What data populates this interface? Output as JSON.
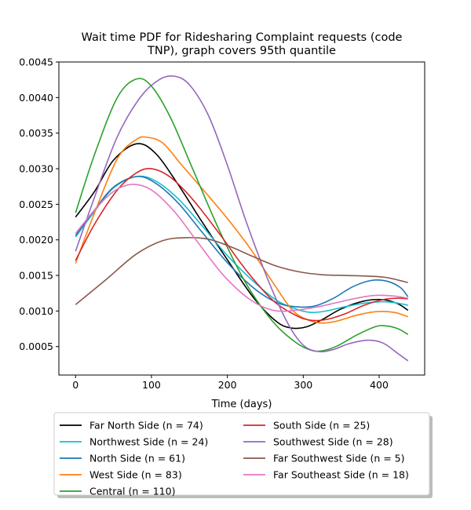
{
  "chart_data": {
    "type": "line",
    "title_lines": [
      "Wait time PDF for Ridesharing Complaint  requests (code",
      "TNP), graph covers 95th quantile"
    ],
    "xlabel": "Time (days)",
    "ylabel": "",
    "xlim": [
      -22,
      460
    ],
    "ylim": [
      0.0001,
      0.0045
    ],
    "x_ticks": [
      0,
      100,
      200,
      300,
      400
    ],
    "y_ticks": [
      0.0005,
      0.001,
      0.0015,
      0.002,
      0.0025,
      0.003,
      0.0035,
      0.004,
      0.0045
    ],
    "y_tick_labels": [
      "0.0005",
      "0.0010",
      "0.0015",
      "0.0020",
      "0.0025",
      "0.0030",
      "0.0035",
      "0.0040",
      "0.0045"
    ],
    "grid": false,
    "legend_placement": "below-plot",
    "legend_columns": 2,
    "series": [
      {
        "name": "Far North Side (n = 74)",
        "color": "#000000",
        "points": [
          [
            0,
            0.00232
          ],
          [
            25,
            0.00268
          ],
          [
            50,
            0.00312
          ],
          [
            80,
            0.00335
          ],
          [
            105,
            0.00322
          ],
          [
            135,
            0.00278
          ],
          [
            165,
            0.00228
          ],
          [
            200,
            0.00172
          ],
          [
            235,
            0.00118
          ],
          [
            265,
            0.00085
          ],
          [
            285,
            0.00076
          ],
          [
            305,
            0.00078
          ],
          [
            325,
            0.00088
          ],
          [
            350,
            0.00103
          ],
          [
            380,
            0.00114
          ],
          [
            405,
            0.00116
          ],
          [
            425,
            0.0011
          ],
          [
            438,
            0.00101
          ]
        ]
      },
      {
        "name": "Northwest Side (n = 24)",
        "color": "#17becf",
        "points": [
          [
            0,
            0.00204
          ],
          [
            25,
            0.0024
          ],
          [
            50,
            0.00273
          ],
          [
            80,
            0.00289
          ],
          [
            105,
            0.00283
          ],
          [
            135,
            0.00258
          ],
          [
            165,
            0.00222
          ],
          [
            200,
            0.00178
          ],
          [
            235,
            0.00141
          ],
          [
            265,
            0.00115
          ],
          [
            290,
            0.00103
          ],
          [
            310,
            0.00098
          ],
          [
            330,
            0.001
          ],
          [
            355,
            0.00106
          ],
          [
            380,
            0.00111
          ],
          [
            405,
            0.00113
          ],
          [
            425,
            0.00111
          ],
          [
            438,
            0.00108
          ]
        ]
      },
      {
        "name": "North Side (n = 61)",
        "color": "#1f77b4",
        "points": [
          [
            0,
            0.00206
          ],
          [
            25,
            0.00242
          ],
          [
            50,
            0.00274
          ],
          [
            80,
            0.00289
          ],
          [
            105,
            0.0028
          ],
          [
            135,
            0.00252
          ],
          [
            165,
            0.00213
          ],
          [
            200,
            0.00168
          ],
          [
            235,
            0.00132
          ],
          [
            265,
            0.00112
          ],
          [
            290,
            0.00106
          ],
          [
            315,
            0.00107
          ],
          [
            340,
            0.00118
          ],
          [
            365,
            0.00134
          ],
          [
            390,
            0.00143
          ],
          [
            410,
            0.00142
          ],
          [
            428,
            0.00133
          ],
          [
            438,
            0.0012
          ]
        ]
      },
      {
        "name": "West Side (n = 83)",
        "color": "#ff7f0e",
        "points": [
          [
            0,
            0.00167
          ],
          [
            25,
            0.00238
          ],
          [
            55,
            0.00314
          ],
          [
            80,
            0.00341
          ],
          [
            95,
            0.00344
          ],
          [
            115,
            0.00336
          ],
          [
            140,
            0.00305
          ],
          [
            170,
            0.00268
          ],
          [
            200,
            0.0023
          ],
          [
            230,
            0.00188
          ],
          [
            260,
            0.0014
          ],
          [
            285,
            0.00102
          ],
          [
            305,
            0.00088
          ],
          [
            325,
            0.00083
          ],
          [
            345,
            0.00086
          ],
          [
            370,
            0.00094
          ],
          [
            395,
            0.00099
          ],
          [
            420,
            0.00098
          ],
          [
            438,
            0.00092
          ]
        ]
      },
      {
        "name": "Central (n = 110)",
        "color": "#2ca02c",
        "points": [
          [
            0,
            0.00238
          ],
          [
            25,
            0.0032
          ],
          [
            55,
            0.004
          ],
          [
            80,
            0.00426
          ],
          [
            100,
            0.00416
          ],
          [
            125,
            0.00372
          ],
          [
            155,
            0.00298
          ],
          [
            190,
            0.00212
          ],
          [
            225,
            0.00138
          ],
          [
            260,
            0.00085
          ],
          [
            290,
            0.00056
          ],
          [
            310,
            0.00045
          ],
          [
            325,
            0.00044
          ],
          [
            345,
            0.00051
          ],
          [
            370,
            0.00066
          ],
          [
            395,
            0.00078
          ],
          [
            410,
            0.00079
          ],
          [
            425,
            0.00075
          ],
          [
            438,
            0.00067
          ]
        ]
      },
      {
        "name": "South Side (n = 25)",
        "color": "#d62728",
        "points": [
          [
            0,
            0.00171
          ],
          [
            25,
            0.00222
          ],
          [
            55,
            0.0027
          ],
          [
            80,
            0.00294
          ],
          [
            100,
            0.003
          ],
          [
            125,
            0.00288
          ],
          [
            155,
            0.00256
          ],
          [
            190,
            0.00208
          ],
          [
            225,
            0.00157
          ],
          [
            260,
            0.00115
          ],
          [
            290,
            0.00094
          ],
          [
            310,
            0.00087
          ],
          [
            330,
            0.00088
          ],
          [
            355,
            0.00096
          ],
          [
            380,
            0.00108
          ],
          [
            405,
            0.00116
          ],
          [
            425,
            0.00118
          ],
          [
            438,
            0.00117
          ]
        ]
      },
      {
        "name": "Southwest Side (n = 28)",
        "color": "#9467bd",
        "points": [
          [
            0,
            0.00184
          ],
          [
            25,
            0.0026
          ],
          [
            55,
            0.00345
          ],
          [
            85,
            0.004
          ],
          [
            110,
            0.00425
          ],
          [
            130,
            0.0043
          ],
          [
            150,
            0.00418
          ],
          [
            175,
            0.00375
          ],
          [
            200,
            0.00305
          ],
          [
            225,
            0.00225
          ],
          [
            255,
            0.0014
          ],
          [
            280,
            0.00082
          ],
          [
            300,
            0.00052
          ],
          [
            320,
            0.00043
          ],
          [
            340,
            0.00046
          ],
          [
            360,
            0.00054
          ],
          [
            385,
            0.00059
          ],
          [
            405,
            0.00055
          ],
          [
            425,
            0.0004
          ],
          [
            438,
            0.0003
          ]
        ]
      },
      {
        "name": "Far Southwest Side (n = 5)",
        "color": "#8c564b",
        "points": [
          [
            0,
            0.00109
          ],
          [
            40,
            0.00144
          ],
          [
            80,
            0.0018
          ],
          [
            115,
            0.00199
          ],
          [
            145,
            0.00203
          ],
          [
            175,
            0.00201
          ],
          [
            205,
            0.0019
          ],
          [
            235,
            0.00176
          ],
          [
            265,
            0.00163
          ],
          [
            295,
            0.00155
          ],
          [
            325,
            0.00151
          ],
          [
            355,
            0.0015
          ],
          [
            385,
            0.00149
          ],
          [
            410,
            0.00147
          ],
          [
            438,
            0.0014
          ]
        ]
      },
      {
        "name": "Far Southeast Side (n = 18)",
        "color": "#e377c2",
        "points": [
          [
            0,
            0.00209
          ],
          [
            25,
            0.00242
          ],
          [
            50,
            0.00268
          ],
          [
            75,
            0.00278
          ],
          [
            100,
            0.0027
          ],
          [
            130,
            0.0024
          ],
          [
            160,
            0.00198
          ],
          [
            195,
            0.0015
          ],
          [
            230,
            0.00116
          ],
          [
            260,
            0.00101
          ],
          [
            290,
            0.00101
          ],
          [
            320,
            0.00106
          ],
          [
            345,
            0.00112
          ],
          [
            370,
            0.00118
          ],
          [
            395,
            0.00122
          ],
          [
            420,
            0.00121
          ],
          [
            438,
            0.00118
          ]
        ]
      }
    ]
  }
}
